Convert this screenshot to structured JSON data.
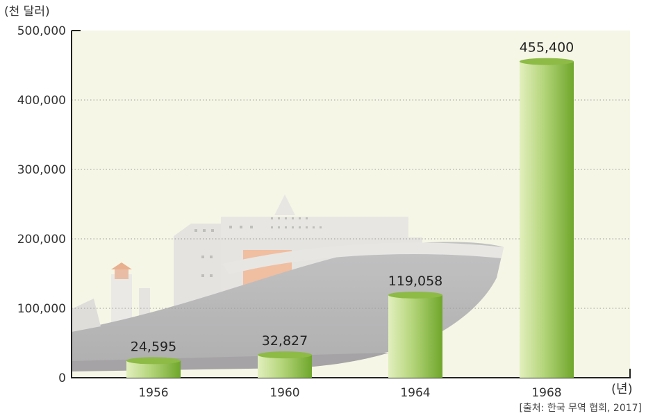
{
  "chart_data": {
    "type": "bar",
    "ylabel": "(천 달러)",
    "xunit": "(년)",
    "categories": [
      "1956",
      "1960",
      "1964",
      "1968"
    ],
    "values": [
      24595,
      32827,
      119058,
      455400
    ],
    "value_labels": [
      "24,595",
      "32,827",
      "119,058",
      "455,400"
    ],
    "yticks": [
      0,
      100000,
      200000,
      300000,
      400000,
      500000
    ],
    "ytick_labels": [
      "0",
      "100,000",
      "200,000",
      "300,000",
      "400,000",
      "500,000"
    ],
    "ylim": [
      0,
      500000
    ],
    "grid": true,
    "source": "[출처: 한국 무역 협회, 2017]",
    "colors": {
      "bar_light": "#d4e6a4",
      "bar_dark": "#6fa62b",
      "bar_top": "#8dbb45",
      "plot_bg": "#f6f6e6",
      "grid": "#9a9a9a"
    }
  }
}
